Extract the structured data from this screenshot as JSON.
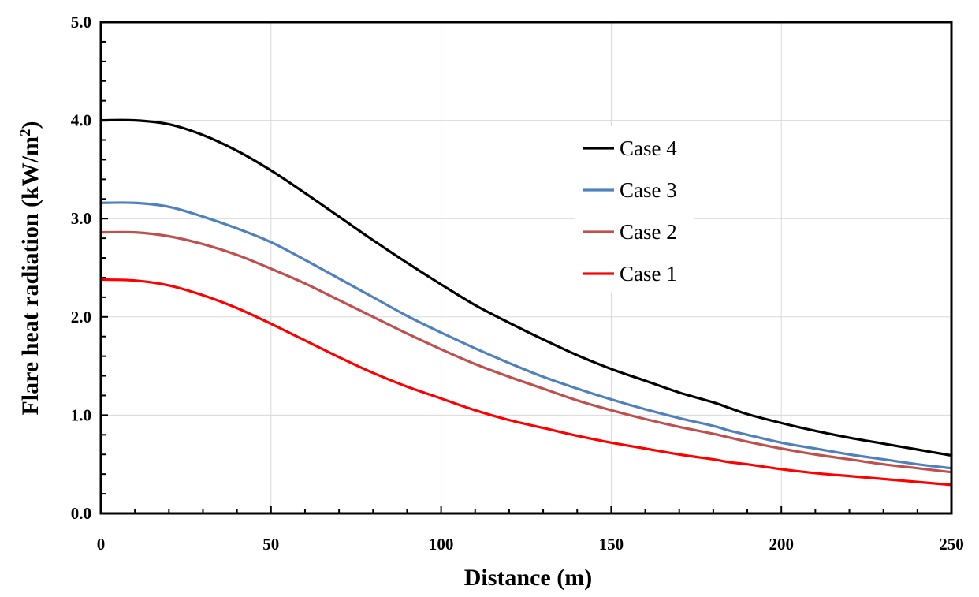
{
  "chart_data": {
    "type": "line",
    "title": "",
    "xlabel": "Distance (m)",
    "ylabel_main": "Flare heat radiation (kW/m",
    "ylabel_sup": "2",
    "ylabel_close": ")",
    "xlim": [
      0,
      250
    ],
    "ylim": [
      0,
      5
    ],
    "x_ticks": [
      0,
      50,
      100,
      150,
      200,
      250
    ],
    "y_ticks": [
      0,
      1,
      2,
      3,
      4,
      5
    ],
    "x_tick_labels": [
      "0",
      "50",
      "100",
      "150",
      "200",
      "250"
    ],
    "y_tick_labels": [
      "0.0",
      "1.0",
      "2.0",
      "3.0",
      "4.0",
      "5.0"
    ],
    "grid": true,
    "legend_position": "upper-center-right",
    "series": [
      {
        "name": "Case 4",
        "color": "#000000",
        "x": [
          0,
          10,
          20,
          30,
          40,
          50,
          60,
          70,
          80,
          90,
          100,
          110,
          120,
          130,
          140,
          150,
          160,
          170,
          180,
          185,
          190,
          200,
          210,
          220,
          230,
          240,
          250
        ],
        "y": [
          4.0,
          4.0,
          3.96,
          3.85,
          3.69,
          3.49,
          3.26,
          3.02,
          2.78,
          2.55,
          2.33,
          2.12,
          1.94,
          1.77,
          1.61,
          1.47,
          1.35,
          1.23,
          1.13,
          1.07,
          1.01,
          0.92,
          0.84,
          0.77,
          0.71,
          0.65,
          0.59
        ]
      },
      {
        "name": "Case 3",
        "color": "#4F81BD",
        "x": [
          0,
          10,
          20,
          30,
          40,
          50,
          60,
          70,
          80,
          90,
          100,
          110,
          120,
          130,
          140,
          150,
          160,
          170,
          180,
          185,
          190,
          200,
          210,
          220,
          230,
          240,
          250
        ],
        "y": [
          3.16,
          3.16,
          3.12,
          3.02,
          2.9,
          2.76,
          2.58,
          2.39,
          2.2,
          2.01,
          1.84,
          1.68,
          1.53,
          1.39,
          1.27,
          1.16,
          1.06,
          0.97,
          0.89,
          0.84,
          0.8,
          0.72,
          0.66,
          0.6,
          0.55,
          0.5,
          0.46
        ]
      },
      {
        "name": "Case 2",
        "color": "#C0504D",
        "x": [
          0,
          10,
          20,
          30,
          40,
          50,
          60,
          70,
          80,
          90,
          100,
          110,
          120,
          130,
          140,
          150,
          160,
          170,
          180,
          185,
          190,
          200,
          210,
          220,
          230,
          240,
          250
        ],
        "y": [
          2.86,
          2.86,
          2.82,
          2.74,
          2.63,
          2.49,
          2.34,
          2.17,
          2.0,
          1.83,
          1.67,
          1.52,
          1.39,
          1.27,
          1.15,
          1.05,
          0.96,
          0.88,
          0.81,
          0.77,
          0.73,
          0.66,
          0.6,
          0.55,
          0.5,
          0.46,
          0.42
        ]
      },
      {
        "name": "Case 1",
        "color": "#FF0000",
        "x": [
          0,
          10,
          20,
          30,
          40,
          50,
          60,
          70,
          80,
          90,
          100,
          110,
          120,
          130,
          140,
          150,
          160,
          170,
          180,
          185,
          190,
          200,
          210,
          220,
          230,
          240,
          250
        ],
        "y": [
          2.38,
          2.37,
          2.32,
          2.22,
          2.09,
          1.93,
          1.76,
          1.59,
          1.43,
          1.29,
          1.17,
          1.05,
          0.95,
          0.87,
          0.79,
          0.72,
          0.66,
          0.6,
          0.55,
          0.52,
          0.5,
          0.45,
          0.41,
          0.38,
          0.35,
          0.32,
          0.29
        ]
      }
    ],
    "legend_order": [
      "Case 4",
      "Case 3",
      "Case 2",
      "Case 1"
    ]
  }
}
